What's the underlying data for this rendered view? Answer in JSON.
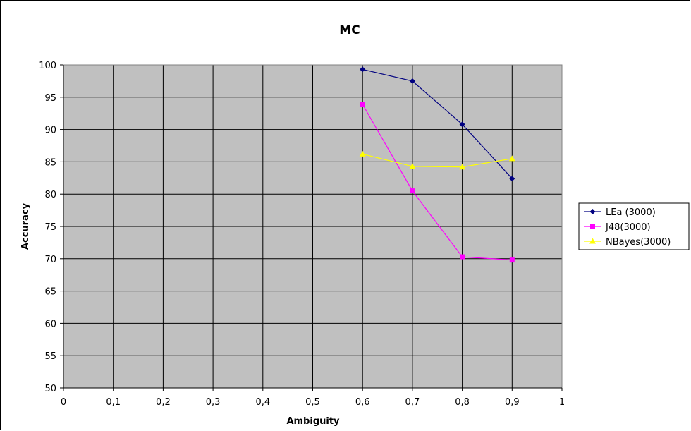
{
  "chart_data": {
    "type": "line",
    "title": "MC",
    "xlabel": "Ambiguity",
    "ylabel": "Accuracy",
    "xlim": [
      0,
      1
    ],
    "ylim": [
      50,
      100
    ],
    "x_ticks": [
      "0",
      "0,1",
      "0,2",
      "0,3",
      "0,4",
      "0,5",
      "0,6",
      "0,7",
      "0,8",
      "0,9",
      "1"
    ],
    "y_ticks": [
      "50",
      "55",
      "60",
      "65",
      "70",
      "75",
      "80",
      "85",
      "90",
      "95",
      "100"
    ],
    "grid": true,
    "plot_background": "#c0c0c0",
    "legend_position": "right",
    "series": [
      {
        "name": "LEa (3000)",
        "color": "#000080",
        "marker": "diamond",
        "points": [
          [
            0.6,
            99.3
          ],
          [
            0.7,
            97.5
          ],
          [
            0.8,
            90.8
          ],
          [
            0.9,
            82.4
          ]
        ]
      },
      {
        "name": "J48(3000)",
        "color": "#ff00ff",
        "marker": "square",
        "points": [
          [
            0.6,
            93.9
          ],
          [
            0.7,
            80.5
          ],
          [
            0.8,
            70.3
          ],
          [
            0.9,
            69.8
          ]
        ]
      },
      {
        "name": "NBayes(3000)",
        "color": "#ffff00",
        "marker": "triangle",
        "points": [
          [
            0.6,
            86.2
          ],
          [
            0.7,
            84.3
          ],
          [
            0.8,
            84.2
          ],
          [
            0.9,
            85.5
          ]
        ]
      }
    ]
  }
}
